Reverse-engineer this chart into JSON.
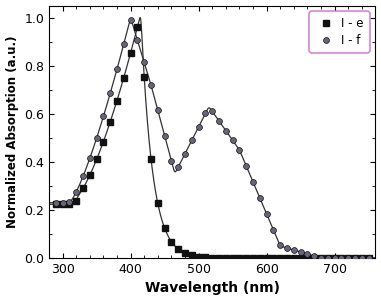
{
  "title": "",
  "xlabel": "Wavelength (nm)",
  "ylabel": "Normalized Absorption (a.u.)",
  "xlim": [
    280,
    760
  ],
  "ylim": [
    0.0,
    1.05
  ],
  "xticks": [
    300,
    400,
    500,
    600,
    700
  ],
  "yticks": [
    0.0,
    0.2,
    0.4,
    0.6,
    0.8,
    1.0
  ],
  "legend_labels": [
    "I - e",
    "I - f"
  ],
  "line_color": "#333333",
  "marker_e": "s",
  "marker_f": "o",
  "marker_color_e": "#111111",
  "marker_color_f_face": "#666677",
  "marker_color_f_edge": "#111111",
  "legend_border_color": "#cc66cc",
  "background_color": "#ffffff"
}
